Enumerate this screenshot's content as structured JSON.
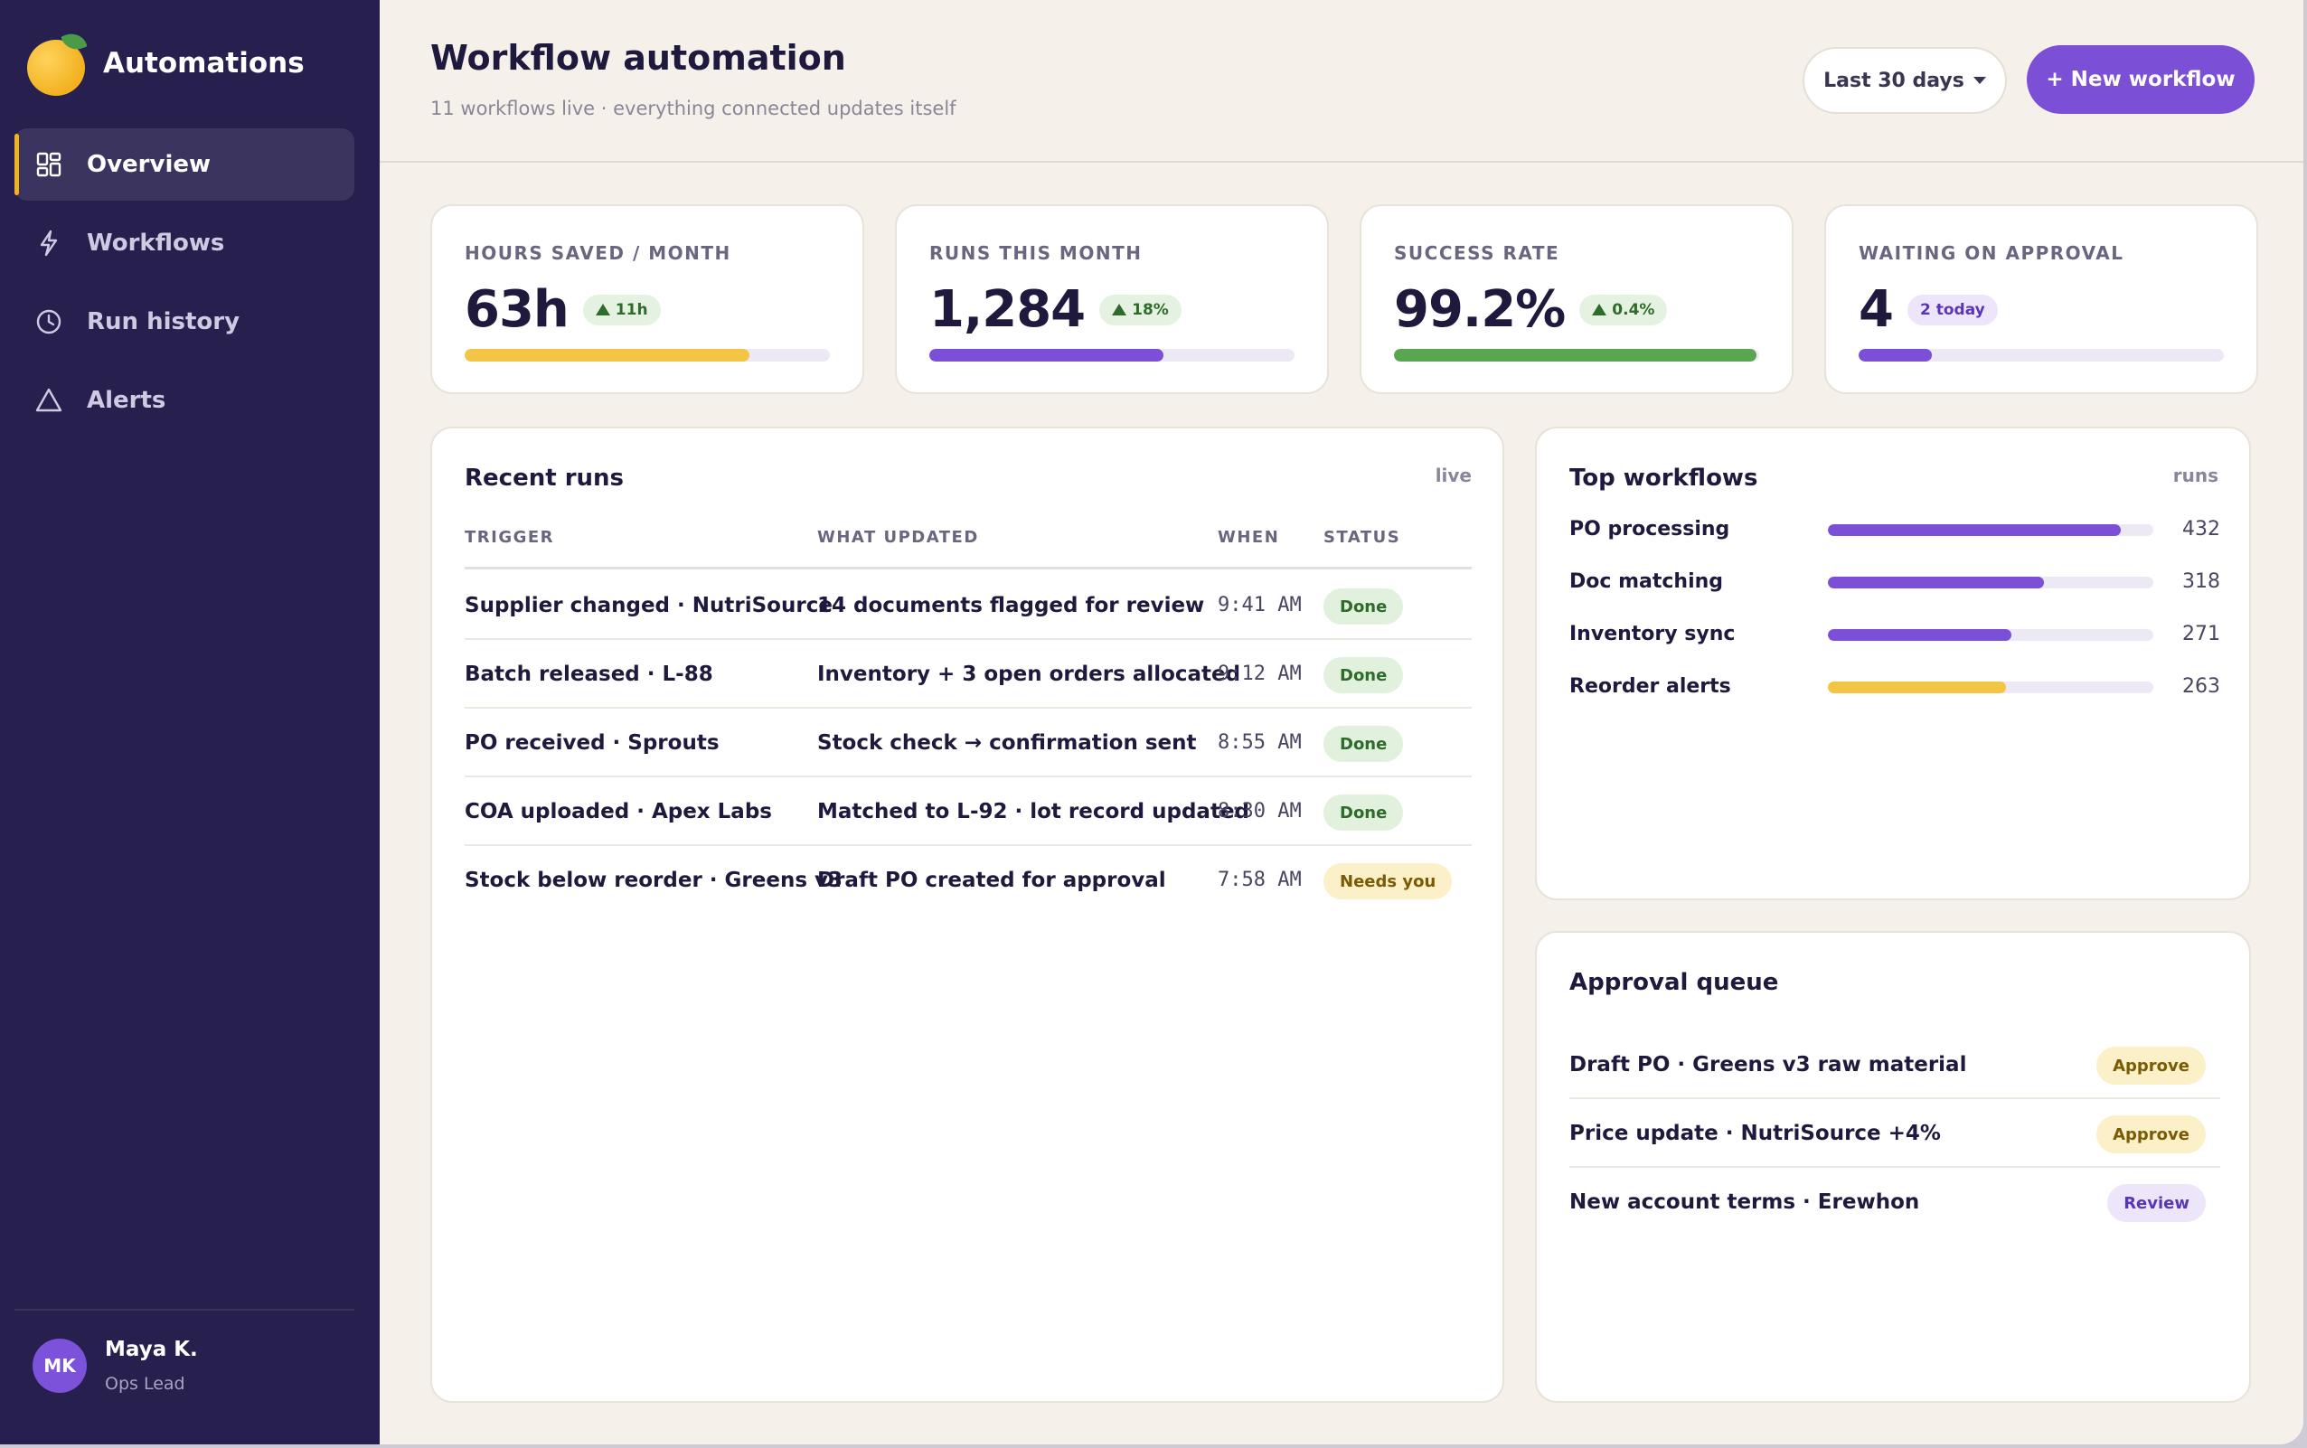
{
  "brand": {
    "name": "Automations"
  },
  "nav": [
    {
      "label": "Overview",
      "icon": "grid-icon",
      "active": true
    },
    {
      "label": "Workflows",
      "icon": "bolt-icon",
      "active": false
    },
    {
      "label": "Run history",
      "icon": "clock-icon",
      "active": false
    },
    {
      "label": "Alerts",
      "icon": "warning-triangle-icon",
      "active": false
    }
  ],
  "user": {
    "initials": "MK",
    "name": "Maya K.",
    "role": "Ops Lead"
  },
  "header": {
    "title": "Workflow automation",
    "subtitle": "11 workflows live · everything connected updates itself",
    "range_label": "Last 30 days",
    "new_label": "+ New workflow"
  },
  "kpis": [
    {
      "label": "HOURS SAVED / MONTH",
      "value": "63h",
      "delta": "11h",
      "delta_up": true,
      "progress": 0.78,
      "color": "#f2c544"
    },
    {
      "label": "RUNS THIS MONTH",
      "value": "1,284",
      "delta": "18%",
      "delta_up": true,
      "progress": 0.64,
      "color": "#7b4fd6"
    },
    {
      "label": "SUCCESS RATE",
      "value": "99.2%",
      "delta": "0.4%",
      "delta_up": true,
      "progress": 0.992,
      "color": "#5aa552"
    },
    {
      "label": "WAITING ON APPROVAL",
      "value": "4",
      "delta": "2 today",
      "delta_up": false,
      "progress": 0.2,
      "color": "#7b4fd6"
    }
  ],
  "recent_runs": {
    "title": "Recent runs",
    "tag": "live",
    "columns": [
      "TRIGGER",
      "WHAT UPDATED",
      "WHEN",
      "STATUS"
    ],
    "rows": [
      {
        "trigger": "Supplier changed · NutriSource",
        "updated": "14 documents flagged for review",
        "when": "9:41 AM",
        "status": "Done",
        "status_kind": "done"
      },
      {
        "trigger": "Batch released · L-88",
        "updated": "Inventory + 3 open orders allocated",
        "when": "9:12 AM",
        "status": "Done",
        "status_kind": "done"
      },
      {
        "trigger": "PO received · Sprouts",
        "updated": "Stock check → confirmation sent",
        "when": "8:55 AM",
        "status": "Done",
        "status_kind": "done"
      },
      {
        "trigger": "COA uploaded · Apex Labs",
        "updated": "Matched to L-92 · lot record updated",
        "when": "8:30 AM",
        "status": "Done",
        "status_kind": "done"
      },
      {
        "trigger": "Stock below reorder · Greens v3",
        "updated": "Draft PO created for approval",
        "when": "7:58 AM",
        "status": "Needs you",
        "status_kind": "needs"
      }
    ]
  },
  "top_workflows": {
    "title": "Top workflows",
    "tag": "runs",
    "max": 480,
    "items": [
      {
        "name": "PO processing",
        "count": 432,
        "color": "#7b4fd6"
      },
      {
        "name": "Doc matching",
        "count": 318,
        "color": "#7b4fd6"
      },
      {
        "name": "Inventory sync",
        "count": 271,
        "color": "#7b4fd6"
      },
      {
        "name": "Reorder alerts",
        "count": 263,
        "color": "#f2c544"
      }
    ]
  },
  "approval_queue": {
    "title": "Approval queue",
    "items": [
      {
        "text": "Draft PO · Greens v3 raw material",
        "action": "Approve",
        "kind": "approve"
      },
      {
        "text": "Price update · NutriSource +4%",
        "action": "Approve",
        "kind": "approve"
      },
      {
        "text": "New account terms · Erewhon",
        "action": "Review",
        "kind": "review"
      }
    ]
  }
}
